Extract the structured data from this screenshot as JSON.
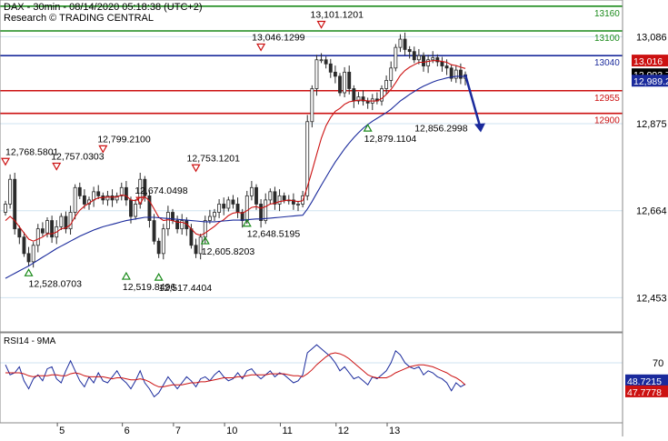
{
  "header": {
    "title": "DAX - 30min - 08/14/2020 05:18:38 (UTC+2)",
    "source": "Research © TRADING CENTRAL"
  },
  "rsi_title": "RSI14 - 9MA",
  "colors": {
    "candle": "#2b2b2b",
    "ma_fast": "#cc1111",
    "ma_slow": "#1a2a9c",
    "line_green": "#1a8a1a",
    "line_blue": "#1a2a9c",
    "line_red": "#cc1111",
    "rsi_line": "#1a2a9c",
    "rsi_ma": "#cc1111",
    "arrow": "#1a2a9c",
    "up_marker": "#1a8a1a",
    "down_marker": "#cc1111",
    "grid": "#cfe3f0"
  },
  "chart_data": [
    {
      "type": "candlestick",
      "title": "DAX - 30min - 08/14/2020 05:18:38 (UTC+2)",
      "y_axis_ticks": [
        "13,086",
        "12,875",
        "12,664",
        "12,453"
      ],
      "ylim": [
        12370,
        13175
      ],
      "x_axis_ticks": [
        "5",
        "6",
        "7",
        "10",
        "11",
        "12",
        "13"
      ],
      "price_badges": [
        {
          "label": "13,016",
          "color": "#cc1111"
        },
        {
          "label": "12,993.7",
          "color": "#000000"
        },
        {
          "label": "12,989.2",
          "color": "#1a2a9c"
        }
      ],
      "horizontal_levels": [
        {
          "label": "13160",
          "value": 13160,
          "color": "#1a8a1a"
        },
        {
          "label": "13100",
          "value": 13100,
          "color": "#1a8a1a"
        },
        {
          "label": "13040",
          "value": 13040,
          "color": "#1a2a9c"
        },
        {
          "label": "12955",
          "value": 12955,
          "color": "#cc1111"
        },
        {
          "label": "12900",
          "value": 12900,
          "color": "#cc1111"
        }
      ],
      "annotations": [
        {
          "label": "12,768.5801",
          "value": 12768.58,
          "kind": "high"
        },
        {
          "label": "12,757.0303",
          "value": 12757.03,
          "kind": "high"
        },
        {
          "label": "12,799.2100",
          "value": 12799.21,
          "kind": "high"
        },
        {
          "label": "12,674.0498",
          "value": 12674.05,
          "kind": "high"
        },
        {
          "label": "12,753.1201",
          "value": 12753.12,
          "kind": "high"
        },
        {
          "label": "13,046.1299",
          "value": 13046.13,
          "kind": "high"
        },
        {
          "label": "13,101.1201",
          "value": 13101.12,
          "kind": "high"
        },
        {
          "label": "12,528.0703",
          "value": 12528.07,
          "kind": "low"
        },
        {
          "label": "12,519.8496",
          "value": 12519.85,
          "kind": "low"
        },
        {
          "label": "12,517.4404",
          "value": 12517.44,
          "kind": "low"
        },
        {
          "label": "12,605.8203",
          "value": 12605.82,
          "kind": "low"
        },
        {
          "label": "12,648.5195",
          "value": 12648.52,
          "kind": "low"
        },
        {
          "label": "12,879.1104",
          "value": 12879.11,
          "kind": "low"
        },
        {
          "label": "12,856.2998",
          "value": 12856.3,
          "kind": "target"
        }
      ],
      "series": [
        {
          "name": "",
          "kind": "close",
          "values": [
            12680,
            12740,
            12620,
            12600,
            12560,
            12540,
            12580,
            12620,
            12610,
            12640,
            12600,
            12625,
            12650,
            12620,
            12660,
            12720,
            12700,
            12680,
            12690,
            12710,
            12700,
            12690,
            12700,
            12690,
            12700,
            12720,
            12690,
            12650,
            12680,
            12740,
            12700,
            12640,
            12590,
            12560,
            12620,
            12660,
            12640,
            12620,
            12640,
            12620,
            12580,
            12560,
            12600,
            12640,
            12650,
            12660,
            12680,
            12670,
            12690,
            12680,
            12660,
            12640,
            12700,
            12720,
            12680,
            12640,
            12690,
            12710,
            12680,
            12700,
            12690,
            12690,
            12680,
            12680,
            12700,
            12880,
            12960,
            13030,
            13030,
            13020,
            13000,
            12990,
            12950,
            13000,
            12960,
            12930,
            12940,
            12930,
            12925,
            12935,
            12930,
            12960,
            12980,
            13010,
            13060,
            13080,
            13055,
            13050,
            13030,
            13040,
            13015,
            13030,
            13035,
            13025,
            13015,
            13010,
            12985,
            13005,
            12985,
            12993.7
          ]
        },
        {
          "name": "",
          "kind": "ma_fast",
          "values": [
            12640,
            12650,
            12640,
            12625,
            12610,
            12595,
            12590,
            12595,
            12600,
            12608,
            12608,
            12612,
            12620,
            12622,
            12630,
            12650,
            12665,
            12675,
            12682,
            12690,
            12695,
            12696,
            12697,
            12697,
            12697,
            12702,
            12700,
            12690,
            12688,
            12696,
            12698,
            12688,
            12668,
            12648,
            12640,
            12642,
            12640,
            12636,
            12636,
            12632,
            12620,
            12608,
            12604,
            12610,
            12618,
            12626,
            12636,
            12642,
            12652,
            12658,
            12660,
            12658,
            12664,
            12672,
            12674,
            12670,
            12674,
            12680,
            12682,
            12686,
            12688,
            12690,
            12688,
            12686,
            12688,
            12722,
            12760,
            12800,
            12840,
            12870,
            12890,
            12905,
            12912,
            12922,
            12928,
            12930,
            12932,
            12932,
            12930,
            12930,
            12930,
            12936,
            12946,
            12958,
            12974,
            12992,
            13004,
            13012,
            13018,
            13024,
            13024,
            13026,
            13028,
            13028,
            13026,
            13024,
            13018,
            13016,
            13012,
            13009
          ]
        },
        {
          "name": "",
          "kind": "ma_slow",
          "values": [
            12500,
            12506,
            12512,
            12518,
            12524,
            12530,
            12537,
            12544,
            12551,
            12558,
            12565,
            12572,
            12578,
            12584,
            12590,
            12596,
            12602,
            12607,
            12612,
            12617,
            12621,
            12625,
            12628,
            12631,
            12634,
            12637,
            12640,
            12642,
            12644,
            12646,
            12648,
            12648,
            12648,
            12647,
            12646,
            12645,
            12644,
            12643,
            12642,
            12641,
            12640,
            12639,
            12638,
            12637,
            12637,
            12637,
            12638,
            12639,
            12640,
            12641,
            12641,
            12641,
            12642,
            12643,
            12644,
            12644,
            12645,
            12646,
            12647,
            12648,
            12649,
            12650,
            12651,
            12652,
            12653,
            12668,
            12686,
            12706,
            12726,
            12745,
            12764,
            12782,
            12798,
            12814,
            12828,
            12841,
            12853,
            12864,
            12873,
            12881,
            12888,
            12895,
            12902,
            12910,
            12920,
            12930,
            12938,
            12946,
            12953,
            12960,
            12966,
            12971,
            12976,
            12980,
            12983,
            12986,
            12988,
            12990,
            12990,
            12989.2
          ]
        }
      ],
      "projection": {
        "from": 12993.7,
        "to": 12856.3
      }
    },
    {
      "type": "line",
      "title": "RSI14 - 9MA",
      "y_axis_ticks": [
        "70"
      ],
      "ylim": [
        10,
        100
      ],
      "price_badges": [
        {
          "label": "48.7215",
          "color": "#1a2a9c"
        },
        {
          "label": "47.7778",
          "color": "#cc1111"
        }
      ],
      "series": [
        {
          "name": "",
          "kind": "rsi",
          "values": [
            68,
            58,
            60,
            66,
            52,
            44,
            54,
            58,
            52,
            64,
            66,
            54,
            50,
            62,
            72,
            62,
            52,
            46,
            56,
            50,
            60,
            52,
            50,
            56,
            62,
            54,
            50,
            44,
            52,
            62,
            50,
            44,
            36,
            40,
            48,
            56,
            50,
            44,
            50,
            56,
            52,
            46,
            54,
            56,
            52,
            58,
            62,
            56,
            52,
            54,
            60,
            54,
            62,
            64,
            58,
            54,
            58,
            62,
            56,
            60,
            58,
            54,
            50,
            52,
            58,
            80,
            84,
            88,
            84,
            80,
            76,
            70,
            62,
            66,
            60,
            54,
            56,
            52,
            48,
            56,
            54,
            58,
            62,
            70,
            82,
            78,
            70,
            66,
            64,
            66,
            58,
            62,
            60,
            56,
            54,
            50,
            42,
            50,
            46,
            48.72
          ]
        },
        {
          "name": "",
          "kind": "rsi_ma",
          "values": [
            60,
            60,
            60,
            60,
            59,
            57,
            56,
            57,
            57,
            57,
            58,
            58,
            57,
            57,
            59,
            60,
            59,
            57,
            56,
            56,
            56,
            56,
            55,
            54,
            55,
            55,
            54,
            53,
            53,
            54,
            53,
            51,
            48,
            46,
            46,
            47,
            48,
            48,
            48,
            49,
            50,
            50,
            51,
            51,
            52,
            53,
            54,
            55,
            55,
            55,
            56,
            56,
            57,
            58,
            58,
            58,
            58,
            59,
            59,
            59,
            59,
            58,
            57,
            57,
            56,
            59,
            63,
            68,
            72,
            76,
            79,
            80,
            79,
            77,
            74,
            70,
            66,
            62,
            58,
            56,
            55,
            55,
            55,
            57,
            60,
            62,
            64,
            66,
            67,
            68,
            68,
            67,
            66,
            64,
            62,
            60,
            57,
            55,
            52,
            47.78
          ]
        }
      ]
    }
  ]
}
